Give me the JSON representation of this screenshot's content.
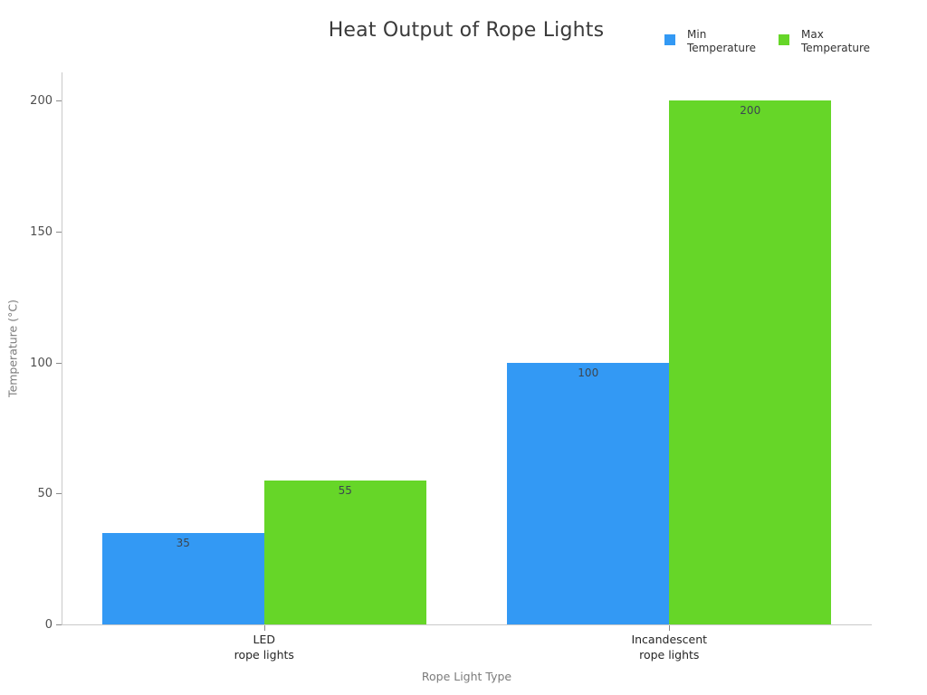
{
  "chart_data": {
    "type": "bar",
    "title": "Heat Output of Rope Lights",
    "xlabel": "Rope Light Type",
    "ylabel": "Temperature (°C)",
    "categories": [
      "LED\nrope lights",
      "Incandescent\nrope lights"
    ],
    "series": [
      {
        "name": "Min Temperature",
        "color": "#3399f4",
        "values": [
          35,
          100
        ]
      },
      {
        "name": "Max Temperature",
        "color": "#66d628",
        "values": [
          55,
          200
        ]
      }
    ],
    "ylim": [
      0,
      200
    ],
    "yticks": [
      0,
      50,
      100,
      150,
      200
    ],
    "grid": false,
    "legend_position": "top-right",
    "bar_value_labels": true
  }
}
